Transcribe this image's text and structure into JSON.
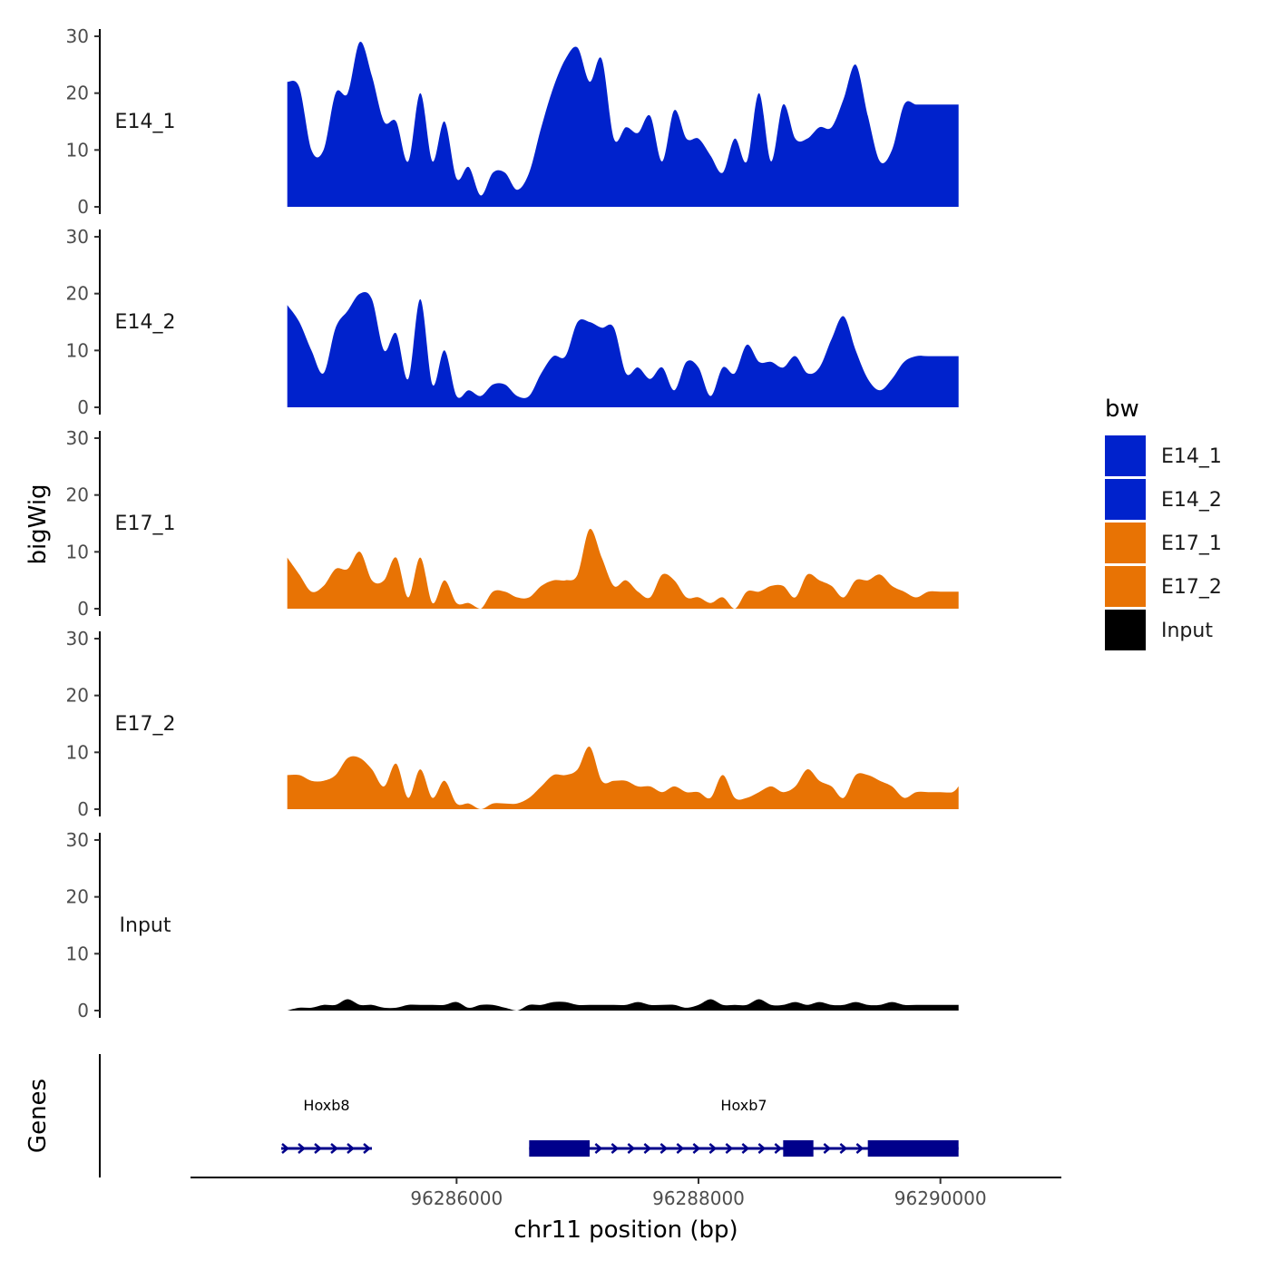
{
  "chart_data": {
    "type": "area",
    "title": "",
    "chromosome": "chr11",
    "xlabel": "chr11 position (bp)",
    "ylabel": "bigWig",
    "genes_track_label": "Genes",
    "xlim": [
      96283800,
      96291000
    ],
    "x_ticks": [
      96286000,
      96288000,
      96290000
    ],
    "x_tick_labels": [
      "96286000",
      "96288000",
      "96290000"
    ],
    "ylim": [
      0,
      30
    ],
    "y_ticks": [
      0,
      10,
      20,
      30
    ],
    "y_tick_labels": [
      "0",
      "10",
      "20",
      "30"
    ],
    "data_range": [
      96284600,
      96290150
    ],
    "legend": {
      "title": "bw",
      "position": "right",
      "entries": [
        {
          "label": "E14_1",
          "color": "#0022CC"
        },
        {
          "label": "E14_2",
          "color": "#0022CC"
        },
        {
          "label": "E17_1",
          "color": "#E87304"
        },
        {
          "label": "E17_2",
          "color": "#E87304"
        },
        {
          "label": "Input",
          "color": "#000000"
        }
      ]
    },
    "series": [
      {
        "name": "E14_1",
        "color": "#0022CC",
        "x": [
          96284600,
          96284700,
          96284800,
          96284900,
          96285000,
          96285100,
          96285200,
          96285300,
          96285400,
          96285500,
          96285600,
          96285700,
          96285800,
          96285900,
          96286000,
          96286100,
          96286200,
          96286300,
          96286400,
          96286500,
          96286600,
          96286700,
          96286800,
          96286900,
          96287000,
          96287100,
          96287200,
          96287300,
          96287400,
          96287500,
          96287600,
          96287700,
          96287800,
          96287900,
          96288000,
          96288100,
          96288200,
          96288300,
          96288400,
          96288500,
          96288600,
          96288700,
          96288800,
          96288900,
          96289000,
          96289100,
          96289200,
          96289300,
          96289400,
          96289500,
          96289600,
          96289700,
          96289800,
          96289900,
          96290000,
          96290100,
          96290150
        ],
        "values": [
          22,
          21,
          10,
          10,
          20,
          20,
          29,
          23,
          15,
          15,
          8,
          20,
          8,
          15,
          5,
          7,
          2,
          6,
          6,
          3,
          6,
          14,
          21,
          26,
          28,
          22,
          26,
          12,
          14,
          13,
          16,
          8,
          17,
          12,
          12,
          9,
          6,
          12,
          8,
          20,
          8,
          18,
          12,
          12,
          14,
          14,
          19,
          25,
          16,
          8,
          10,
          18,
          18,
          18,
          18,
          18,
          18
        ]
      },
      {
        "name": "E14_2",
        "color": "#0022CC",
        "x": [
          96284600,
          96284700,
          96284800,
          96284900,
          96285000,
          96285100,
          96285200,
          96285300,
          96285400,
          96285500,
          96285600,
          96285700,
          96285800,
          96285900,
          96286000,
          96286100,
          96286200,
          96286300,
          96286400,
          96286500,
          96286600,
          96286700,
          96286800,
          96286900,
          96287000,
          96287100,
          96287200,
          96287300,
          96287400,
          96287500,
          96287600,
          96287700,
          96287800,
          96287900,
          96288000,
          96288100,
          96288200,
          96288300,
          96288400,
          96288500,
          96288600,
          96288700,
          96288800,
          96288900,
          96289000,
          96289100,
          96289200,
          96289300,
          96289400,
          96289500,
          96289600,
          96289700,
          96289800,
          96289900,
          96290000,
          96290100,
          96290150
        ],
        "values": [
          18,
          15,
          10,
          6,
          14,
          17,
          20,
          19,
          10,
          13,
          5,
          19,
          4,
          10,
          2,
          3,
          2,
          4,
          4,
          2,
          2,
          6,
          9,
          9,
          15,
          15,
          14,
          14,
          6,
          7,
          5,
          7,
          3,
          8,
          7,
          2,
          7,
          6,
          11,
          8,
          8,
          7,
          9,
          6,
          7,
          12,
          16,
          10,
          5,
          3,
          5,
          8,
          9,
          9,
          9,
          9,
          9
        ]
      },
      {
        "name": "E17_1",
        "color": "#E87304",
        "x": [
          96284600,
          96284700,
          96284800,
          96284900,
          96285000,
          96285100,
          96285200,
          96285300,
          96285400,
          96285500,
          96285600,
          96285700,
          96285800,
          96285900,
          96286000,
          96286100,
          96286200,
          96286300,
          96286400,
          96286500,
          96286600,
          96286700,
          96286800,
          96286900,
          96287000,
          96287100,
          96287200,
          96287300,
          96287400,
          96287500,
          96287600,
          96287700,
          96287800,
          96287900,
          96288000,
          96288100,
          96288200,
          96288300,
          96288400,
          96288500,
          96288600,
          96288700,
          96288800,
          96288900,
          96289000,
          96289100,
          96289200,
          96289300,
          96289400,
          96289500,
          96289600,
          96289700,
          96289800,
          96289900,
          96290000,
          96290100,
          96290150
        ],
        "values": [
          9,
          6,
          3,
          4,
          7,
          7,
          10,
          5,
          5,
          9,
          2,
          9,
          1,
          5,
          1,
          1,
          0,
          3,
          3,
          2,
          2,
          4,
          5,
          5,
          6,
          14,
          9,
          4,
          5,
          3,
          2,
          6,
          5,
          2,
          2,
          1,
          2,
          0,
          3,
          3,
          4,
          4,
          2,
          6,
          5,
          4,
          2,
          5,
          5,
          6,
          4,
          3,
          2,
          3,
          3,
          3,
          3
        ]
      },
      {
        "name": "E17_2",
        "color": "#E87304",
        "x": [
          96284600,
          96284700,
          96284800,
          96284900,
          96285000,
          96285100,
          96285200,
          96285300,
          96285400,
          96285500,
          96285600,
          96285700,
          96285800,
          96285900,
          96286000,
          96286100,
          96286200,
          96286300,
          96286400,
          96286500,
          96286600,
          96286700,
          96286800,
          96286900,
          96287000,
          96287100,
          96287200,
          96287300,
          96287400,
          96287500,
          96287600,
          96287700,
          96287800,
          96287900,
          96288000,
          96288100,
          96288200,
          96288300,
          96288400,
          96288500,
          96288600,
          96288700,
          96288800,
          96288900,
          96289000,
          96289100,
          96289200,
          96289300,
          96289400,
          96289500,
          96289600,
          96289700,
          96289800,
          96289900,
          96290000,
          96290100,
          96290150
        ],
        "values": [
          6,
          6,
          5,
          5,
          6,
          9,
          9,
          7,
          4,
          8,
          2,
          7,
          2,
          5,
          1,
          1,
          0,
          1,
          1,
          1,
          2,
          4,
          6,
          6,
          7,
          11,
          5,
          5,
          5,
          4,
          4,
          3,
          4,
          3,
          3,
          2,
          6,
          2,
          2,
          3,
          4,
          3,
          4,
          7,
          5,
          4,
          2,
          6,
          6,
          5,
          4,
          2,
          3,
          3,
          3,
          3,
          4
        ]
      },
      {
        "name": "Input",
        "color": "#000000",
        "x": [
          96284600,
          96284700,
          96284800,
          96284900,
          96285000,
          96285100,
          96285200,
          96285300,
          96285400,
          96285500,
          96285600,
          96285700,
          96285800,
          96285900,
          96286000,
          96286100,
          96286200,
          96286300,
          96286400,
          96286500,
          96286600,
          96286700,
          96286800,
          96286900,
          96287000,
          96287100,
          96287200,
          96287300,
          96287400,
          96287500,
          96287600,
          96287700,
          96287800,
          96287900,
          96288000,
          96288100,
          96288200,
          96288300,
          96288400,
          96288500,
          96288600,
          96288700,
          96288800,
          96288900,
          96289000,
          96289100,
          96289200,
          96289300,
          96289400,
          96289500,
          96289600,
          96289700,
          96289800,
          96289900,
          96290000,
          96290100,
          96290150
        ],
        "values": [
          0,
          0.5,
          0.5,
          1,
          1,
          2,
          1,
          1,
          0.5,
          0.5,
          1,
          1,
          1,
          1,
          1.5,
          0.5,
          1,
          1,
          0.5,
          0,
          1,
          1,
          1.5,
          1.5,
          1,
          1,
          1,
          1,
          1,
          1.5,
          1,
          1,
          1,
          0.5,
          1,
          2,
          1,
          1,
          1,
          2,
          1,
          1,
          1.5,
          1,
          1.5,
          1,
          1,
          1.5,
          1,
          1,
          1.5,
          1,
          1,
          1,
          1,
          1,
          1
        ]
      }
    ],
    "genes": [
      {
        "name": "Hoxb8",
        "strand": "+",
        "start": 96284550,
        "end": 96285300,
        "exons": []
      },
      {
        "name": "Hoxb7",
        "strand": "+",
        "start": 96286600,
        "end": 96290150,
        "exons": [
          [
            96286600,
            96287100
          ],
          [
            96288700,
            96288950
          ],
          [
            96289400,
            96290150
          ]
        ]
      }
    ]
  }
}
